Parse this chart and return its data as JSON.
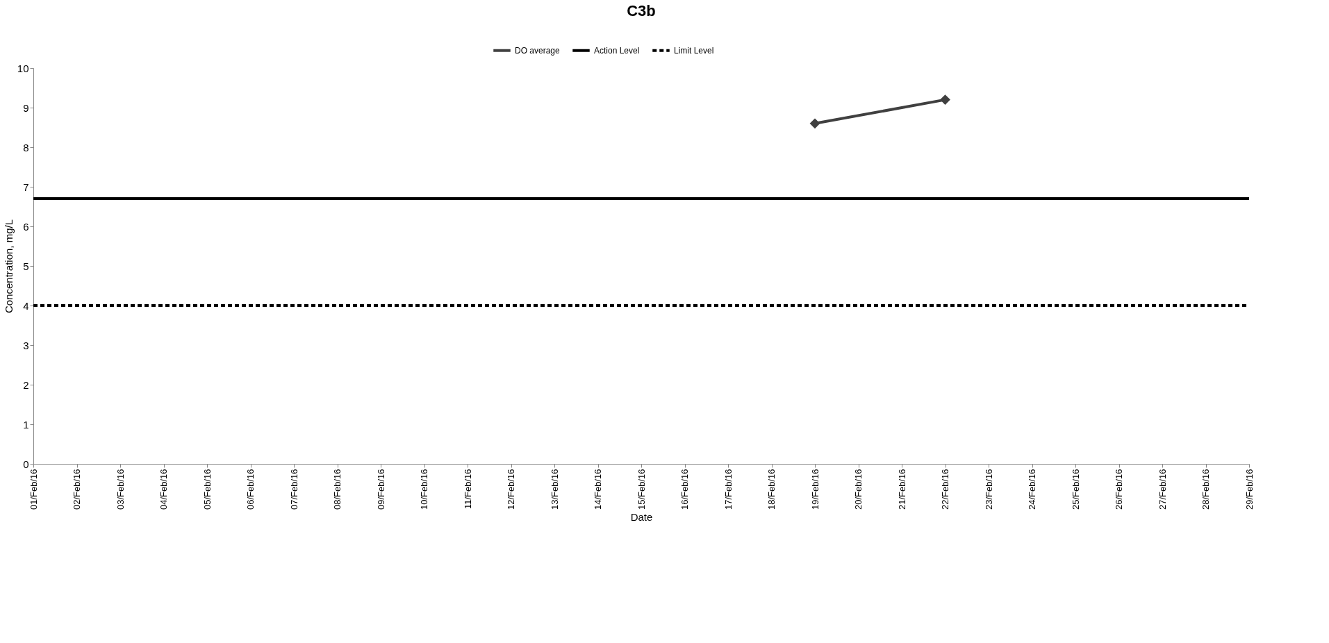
{
  "chart_data": {
    "type": "line",
    "title": "C3b",
    "xlabel": "Date",
    "ylabel": "Concentration, mg/L",
    "categories": [
      "01/Feb/16",
      "02/Feb/16",
      "03/Feb/16",
      "04/Feb/16",
      "05/Feb/16",
      "06/Feb/16",
      "07/Feb/16",
      "08/Feb/16",
      "09/Feb/16",
      "10/Feb/16",
      "11/Feb/16",
      "12/Feb/16",
      "13/Feb/16",
      "14/Feb/16",
      "15/Feb/16",
      "16/Feb/16",
      "17/Feb/16",
      "18/Feb/16",
      "19/Feb/16",
      "20/Feb/16",
      "21/Feb/16",
      "22/Feb/16",
      "23/Feb/16",
      "24/Feb/16",
      "25/Feb/16",
      "26/Feb/16",
      "27/Feb/16",
      "28/Feb/16",
      "29/Feb/16"
    ],
    "series": [
      {
        "name": "DO average",
        "color": "#404040",
        "marker": "diamond",
        "line_style": "solid",
        "values": [
          null,
          null,
          null,
          null,
          null,
          null,
          null,
          null,
          null,
          null,
          null,
          null,
          null,
          null,
          null,
          null,
          null,
          null,
          8.6,
          null,
          null,
          9.2,
          null,
          null,
          null,
          null,
          null,
          null,
          null
        ]
      },
      {
        "name": "Action Level",
        "color": "#000000",
        "marker": "none",
        "line_style": "solid",
        "values": [
          6.7,
          6.7,
          6.7,
          6.7,
          6.7,
          6.7,
          6.7,
          6.7,
          6.7,
          6.7,
          6.7,
          6.7,
          6.7,
          6.7,
          6.7,
          6.7,
          6.7,
          6.7,
          6.7,
          6.7,
          6.7,
          6.7,
          6.7,
          6.7,
          6.7,
          6.7,
          6.7,
          6.7,
          6.7
        ]
      },
      {
        "name": "Limit Level",
        "color": "#000000",
        "marker": "none",
        "line_style": "dashed",
        "values": [
          4,
          4,
          4,
          4,
          4,
          4,
          4,
          4,
          4,
          4,
          4,
          4,
          4,
          4,
          4,
          4,
          4,
          4,
          4,
          4,
          4,
          4,
          4,
          4,
          4,
          4,
          4,
          4,
          4
        ]
      }
    ],
    "ylim": [
      0,
      10
    ],
    "yticks": [
      0,
      1,
      2,
      3,
      4,
      5,
      6,
      7,
      8,
      9,
      10
    ],
    "grid": false,
    "legend": "top"
  }
}
